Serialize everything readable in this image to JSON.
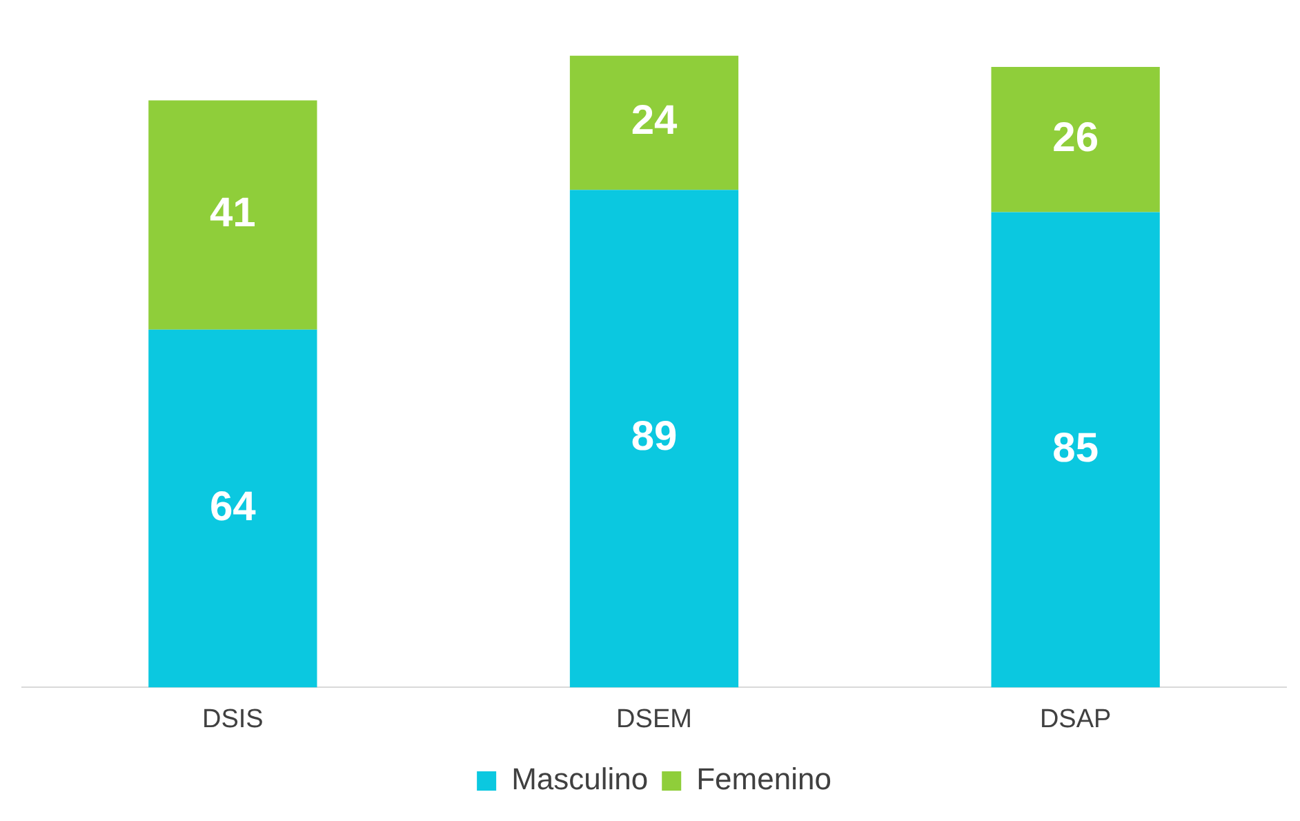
{
  "chart_data": {
    "type": "bar",
    "stacked": true,
    "categories": [
      "DSIS",
      "DSEM",
      "DSAP"
    ],
    "series": [
      {
        "name": "Masculino",
        "color": "#0bc8e0",
        "values": [
          64,
          89,
          85
        ]
      },
      {
        "name": "Femenino",
        "color": "#8fce3a",
        "values": [
          41,
          24,
          26
        ]
      }
    ],
    "data_labels": true,
    "legend": "bottom",
    "tick_labels": "x",
    "grid": false
  }
}
